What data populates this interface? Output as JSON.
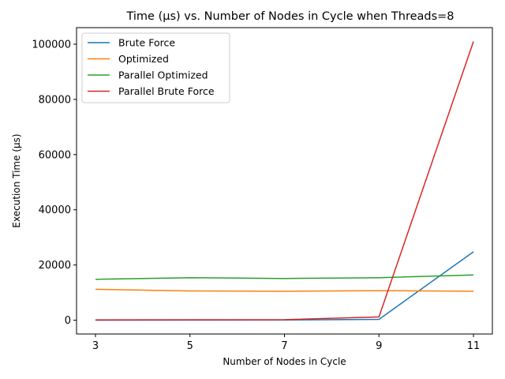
{
  "chart_data": {
    "type": "line",
    "title": "Time (μs) vs. Number of Nodes in Cycle when Threads=8",
    "xlabel": "Number of Nodes in Cycle",
    "ylabel": "Execution Time (μs)",
    "x": [
      3,
      5,
      7,
      9,
      11
    ],
    "xticks": [
      3,
      5,
      7,
      9,
      11
    ],
    "yticks": [
      0,
      20000,
      40000,
      60000,
      80000,
      100000
    ],
    "xlim": [
      2.6,
      11.4
    ],
    "ylim": [
      -5000,
      106000
    ],
    "grid": false,
    "legend_position": "top-left",
    "series": [
      {
        "name": "Brute Force",
        "color": "#1f77b4",
        "values": [
          20,
          40,
          80,
          300,
          24800
        ]
      },
      {
        "name": "Optimized",
        "color": "#ff7f0e",
        "values": [
          11200,
          10600,
          10500,
          10700,
          10500
        ]
      },
      {
        "name": "Parallel Optimized",
        "color": "#2ca02c",
        "values": [
          14800,
          15400,
          15100,
          15400,
          16400
        ]
      },
      {
        "name": "Parallel Brute Force",
        "color": "#d62728",
        "values": [
          100,
          150,
          200,
          1200,
          101000
        ]
      }
    ]
  }
}
